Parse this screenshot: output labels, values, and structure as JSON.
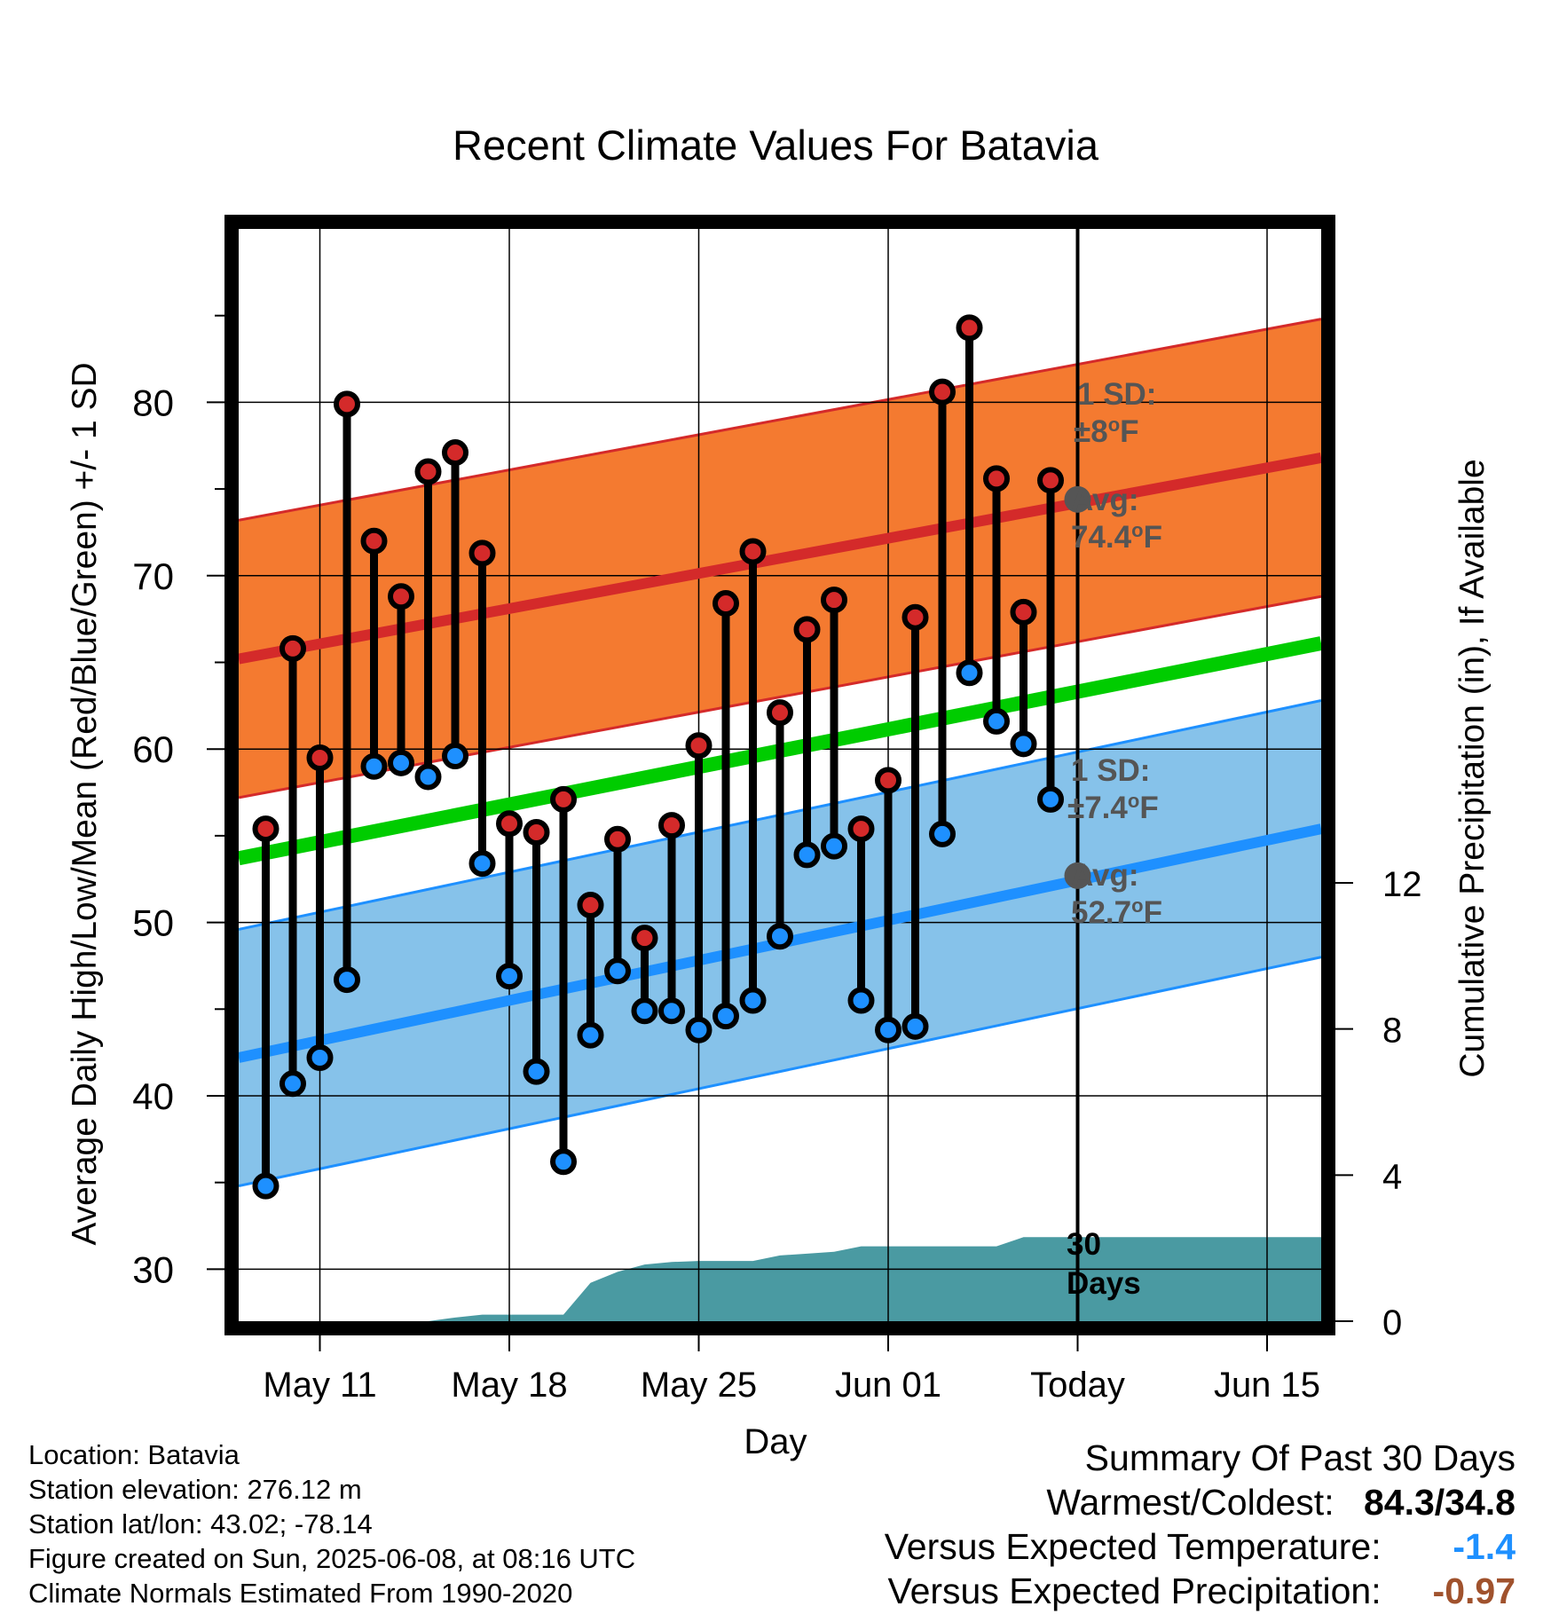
{
  "chart_data": {
    "type": "line",
    "title": "Recent Climate Values For Batavia",
    "xlabel": "Day",
    "ylabel": "Average Daily High/Low/Mean (Red/Blue/Green) +/- 1 SD",
    "y2label": "Cumulative Precipitation (in), If Available",
    "xlim": [
      0,
      40
    ],
    "ylim": [
      27,
      90
    ],
    "y2lim": [
      0,
      29.9
    ],
    "x_ticks": [
      {
        "x": 3,
        "label": "May 11"
      },
      {
        "x": 10,
        "label": "May 18"
      },
      {
        "x": 17,
        "label": "May 25"
      },
      {
        "x": 24,
        "label": "Jun 01"
      },
      {
        "x": 31,
        "label": "Today"
      },
      {
        "x": 38,
        "label": "Jun 15"
      }
    ],
    "y_ticks": [
      30,
      40,
      50,
      60,
      70,
      80
    ],
    "y2_ticks": [
      0,
      4,
      8,
      12
    ],
    "grid": true,
    "today_x": 31,
    "days_label": [
      "30",
      "Days"
    ],
    "normal_high": {
      "x": [
        0,
        40
      ],
      "y": [
        65.2,
        76.8
      ],
      "sd_label_1": "1 SD:",
      "sd_label_2": "±8",
      "sd_unit": "F",
      "avg_label_1": "Avg:",
      "avg_label_2": "74.4",
      "avg_unit": "F",
      "avg_today": 74.4,
      "sd": 8
    },
    "normal_low": {
      "x": [
        0,
        40
      ],
      "y": [
        42.2,
        55.4
      ],
      "sd_label_1": "1 SD:",
      "sd_label_2": "±7.4",
      "sd_unit": "F",
      "avg_label_1": "Avg:",
      "avg_label_2": "52.7",
      "avg_unit": "F",
      "avg_today": 52.7,
      "sd": 7.4
    },
    "normal_mean": {
      "x": [
        0,
        40
      ],
      "y": [
        53.7,
        66.1
      ]
    },
    "colors": {
      "high": "#d42a2a",
      "high_band": "#f47a30",
      "low": "#1e90ff",
      "low_band": "#86c2ea",
      "mean": "#00cc00",
      "precip": "#4a9aa2",
      "text_gray": "#555555"
    },
    "series": [
      {
        "name": "High",
        "x": [
          1,
          2,
          3,
          4,
          5,
          6,
          7,
          8,
          9,
          10,
          11,
          12,
          13,
          14,
          15,
          16,
          17,
          18,
          19,
          20,
          21,
          22,
          23,
          24,
          25,
          26,
          27,
          28,
          29,
          30
        ],
        "values": [
          55.4,
          65.8,
          59.5,
          79.9,
          72.0,
          68.8,
          76.0,
          77.1,
          71.3,
          55.7,
          55.2,
          57.1,
          51.0,
          54.8,
          49.1,
          55.6,
          60.2,
          68.4,
          71.4,
          62.1,
          66.9,
          68.6,
          55.4,
          58.2,
          67.6,
          80.6,
          84.3,
          75.6,
          67.9,
          75.5
        ]
      },
      {
        "name": "Low",
        "x": [
          1,
          2,
          3,
          4,
          5,
          6,
          7,
          8,
          9,
          10,
          11,
          12,
          13,
          14,
          15,
          16,
          17,
          18,
          19,
          20,
          21,
          22,
          23,
          24,
          25,
          26,
          27,
          28,
          29,
          30
        ],
        "values": [
          34.8,
          40.7,
          42.2,
          46.7,
          59.0,
          59.2,
          58.4,
          59.6,
          53.4,
          46.9,
          41.4,
          36.2,
          43.5,
          47.2,
          44.9,
          44.9,
          43.8,
          44.6,
          45.5,
          49.2,
          53.9,
          54.4,
          45.5,
          43.8,
          44.0,
          55.1,
          64.4,
          61.6,
          60.3,
          57.1
        ]
      },
      {
        "name": "Precipitation",
        "x": [
          0,
          7,
          8,
          9,
          10,
          11,
          12,
          13,
          14,
          15,
          16,
          17,
          18,
          19,
          20,
          21,
          22,
          23,
          24,
          25,
          26,
          27,
          28,
          29,
          30,
          31,
          40
        ],
        "values": [
          0,
          0,
          0.1,
          0.18,
          0.18,
          0.18,
          0.18,
          1.05,
          1.35,
          1.55,
          1.62,
          1.65,
          1.65,
          1.65,
          1.8,
          1.85,
          1.9,
          2.05,
          2.05,
          2.05,
          2.05,
          2.05,
          2.05,
          2.3,
          2.3,
          2.3,
          2.3
        ]
      }
    ]
  },
  "footer": {
    "location": "Location: Batavia",
    "elevation": "Station elevation: 276.12 m",
    "latlon": "Station lat/lon: 43.02; -78.14",
    "created": "Figure created on Sun, 2025-06-08, at 08:16 UTC",
    "normals": "Climate Normals Estimated From 1990-2020"
  },
  "summary": {
    "title": "Summary Of Past 30 Days",
    "warm_cold_label": "Warmest/Coldest:",
    "warm_cold_value": "84.3/34.8",
    "temp_label": "Versus Expected Temperature:",
    "temp_value": "-1.4",
    "temp_color": "#1e90ff",
    "precip_label": "Versus Expected Precipitation:",
    "precip_value": "-0.97",
    "precip_color": "#a0522d"
  }
}
